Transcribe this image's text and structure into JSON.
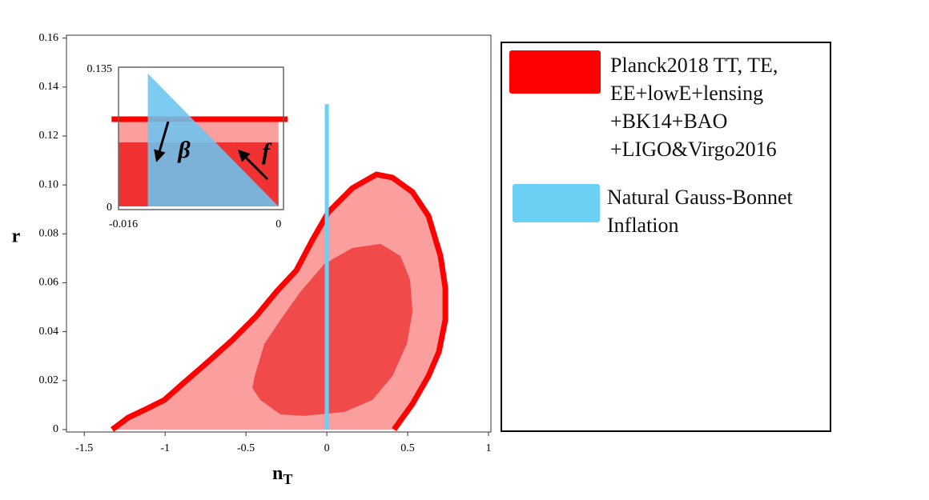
{
  "chart_data": [
    {
      "type": "contour",
      "xlabel": "n",
      "xlabel_subscript": "T",
      "ylabel": "r",
      "xlim": [
        -1.61,
        1.015
      ],
      "ylim": [
        -0.001,
        0.1612
      ],
      "xticks": [
        -1.5,
        -1,
        -0.5,
        0,
        0.5,
        1
      ],
      "yticks": [
        0,
        0.02,
        0.04,
        0.06,
        0.08,
        {
          "value": 0.1,
          "label": "0.10"
        },
        0.12,
        0.14,
        0.16
      ],
      "series": [
        {
          "name": "Planck2018 TT, TE,\nEE+lowE+lensing\n+BK14+BAO\n+LIGO&Virgo2016",
          "color": "#ff0000",
          "regions": [
            {
              "fill": "#fa9e9e",
              "edge": "#ff0000",
              "x": [
                -1.327,
                -1.228,
                -1.104,
                -1.005,
                -0.881,
                -0.733,
                -0.584,
                -0.436,
                -0.312,
                -0.188,
                -0.089,
                0.01,
                0.158,
                0.307,
                0.406,
                0.53,
                0.629,
                0.703,
                0.733,
                0.733,
                0.693,
                0.629,
                0.53,
                0.416
              ],
              "y": [
                0,
                0.0049,
                0.0088,
                0.0121,
                0.0193,
                0.0278,
                0.0366,
                0.0464,
                0.0563,
                0.0651,
                0.0775,
                0.0889,
                0.0987,
                0.1043,
                0.103,
                0.0971,
                0.0873,
                0.071,
                0.0579,
                0.0448,
                0.0317,
                0.0219,
                0.0105,
                0
              ]
            },
            {
              "fill": "#f04a4a",
              "x": [
                -0.446,
                -0.386,
                -0.287,
                -0.163,
                -0.015,
                0.158,
                0.332,
                0.455,
                0.515,
                0.53,
                0.495,
                0.406,
                0.282,
                0.109,
                -0.139,
                -0.287,
                -0.411,
                -0.46
              ],
              "y": [
                0.0219,
                0.035,
                0.0448,
                0.0563,
                0.0677,
                0.0742,
                0.0759,
                0.071,
                0.0612,
                0.0481,
                0.035,
                0.0219,
                0.0121,
                0.0072,
                0.0056,
                0.0062,
                0.0121,
                0.017
              ]
            }
          ]
        },
        {
          "name": "Natural Gauss-Bonnet\nInflation",
          "color": "#6cd0f5",
          "x": [
            0,
            0
          ],
          "y": [
            0,
            0.133
          ]
        }
      ]
    },
    {
      "type": "contour",
      "xlim": [
        -0.016,
        0.0005
      ],
      "ylim": [
        0,
        0.135
      ],
      "xticks": [
        -0.016,
        0
      ],
      "yticks": [
        0,
        0.135
      ],
      "annotations": [
        "β",
        "f"
      ],
      "series": [
        {
          "color": "#ff0000",
          "regions": [
            {
              "fill": "#fa9e9e",
              "x": [
                -0.016,
                0,
                0,
                -0.016
              ],
              "y": [
                0.0637,
                0.0637,
                0.0849,
                0.0849
              ]
            },
            {
              "fill": "#f03232",
              "x": [
                -0.016,
                0,
                0,
                -0.016
              ],
              "y": [
                0.003,
                0.003,
                0.0637,
                0.0637
              ]
            },
            {
              "edge": "#ff0000",
              "x": [
                -0.0167,
                0.0009
              ],
              "y": [
                0.0857,
                0.0857
              ]
            }
          ]
        },
        {
          "color": "#6cc4ef",
          "regions": [
            {
              "fill": "#6cc4ef",
              "x": [
                -0.01307,
                -0.01307,
                0
              ],
              "y": [
                0.129,
                0.003,
                0.003
              ]
            }
          ]
        }
      ]
    }
  ]
}
